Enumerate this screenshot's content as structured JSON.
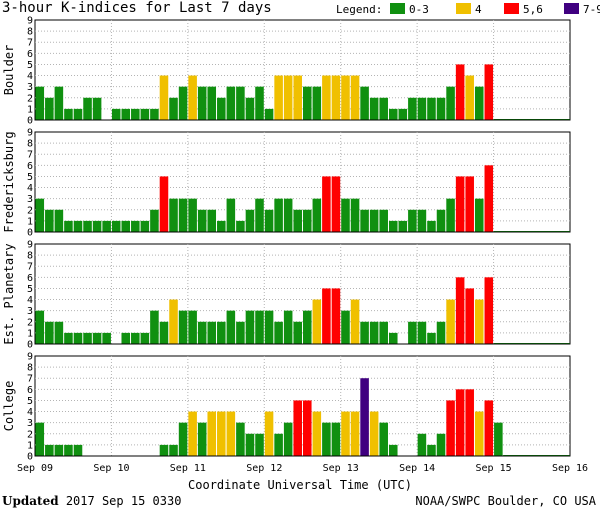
{
  "title": "3-hour K-indices for Last 7 days",
  "legend": {
    "label": "Legend:",
    "items": [
      {
        "label": "0-3",
        "color": "#109010"
      },
      {
        "label": "4",
        "color": "#f0c000"
      },
      {
        "label": "5,6",
        "color": "#ff0000"
      },
      {
        "label": "7-9",
        "color": "#400080"
      }
    ]
  },
  "footer": {
    "updated_label": "Updated",
    "updated_value": "2017 Sep 15 0330",
    "credit": "NOAA/SWPC Boulder, CO USA"
  },
  "chart_data": {
    "type": "bar",
    "title": "3-hour K-indices for Last 7 days",
    "xlabel": "Coordinate Universal Time (UTC)",
    "x_ticks": [
      "Sep 09",
      "Sep 10",
      "Sep 11",
      "Sep 12",
      "Sep 13",
      "Sep 14",
      "Sep 15",
      "Sep 16"
    ],
    "ylim": [
      0,
      9
    ],
    "y_ticks": [
      0,
      1,
      2,
      3,
      4,
      5,
      6,
      7,
      8,
      9
    ],
    "grid": true,
    "color_scale": {
      "0-3": "#109010",
      "4": "#f0c000",
      "5-6": "#ff0000",
      "7-9": "#400080"
    },
    "series": [
      {
        "name": "Boulder",
        "values": [
          3,
          2,
          3,
          1,
          1,
          2,
          2,
          0,
          1,
          1,
          1,
          1,
          1,
          4,
          2,
          3,
          4,
          3,
          3,
          2,
          3,
          3,
          2,
          3,
          1,
          4,
          4,
          4,
          3,
          3,
          4,
          4,
          4,
          4,
          3,
          2,
          2,
          1,
          1,
          2,
          2,
          2,
          2,
          3,
          5,
          4,
          3,
          5
        ]
      },
      {
        "name": "Fredericksburg",
        "values": [
          3,
          2,
          2,
          1,
          1,
          1,
          1,
          1,
          1,
          1,
          1,
          1,
          2,
          5,
          3,
          3,
          3,
          2,
          2,
          1,
          3,
          1,
          2,
          3,
          2,
          3,
          3,
          2,
          2,
          3,
          5,
          5,
          3,
          3,
          2,
          2,
          2,
          1,
          1,
          2,
          2,
          1,
          2,
          3,
          5,
          5,
          3,
          6
        ]
      },
      {
        "name": "Est. Planetary",
        "values": [
          3,
          2,
          2,
          1,
          1,
          1,
          1,
          1,
          0,
          1,
          1,
          1,
          3,
          2,
          4,
          3,
          3,
          2,
          2,
          2,
          3,
          2,
          3,
          3,
          3,
          2,
          3,
          2,
          3,
          4,
          5,
          5,
          3,
          4,
          2,
          2,
          2,
          1,
          0,
          2,
          2,
          1,
          2,
          4,
          6,
          5,
          4,
          6
        ]
      },
      {
        "name": "College",
        "values": [
          3,
          1,
          1,
          1,
          1,
          0,
          0,
          0,
          0,
          0,
          0,
          0,
          0,
          1,
          1,
          3,
          4,
          3,
          4,
          4,
          4,
          3,
          2,
          2,
          4,
          2,
          3,
          5,
          5,
          4,
          3,
          3,
          4,
          4,
          7,
          4,
          3,
          1,
          0,
          0,
          2,
          1,
          2,
          5,
          6,
          6,
          4,
          5,
          3
        ]
      }
    ]
  }
}
